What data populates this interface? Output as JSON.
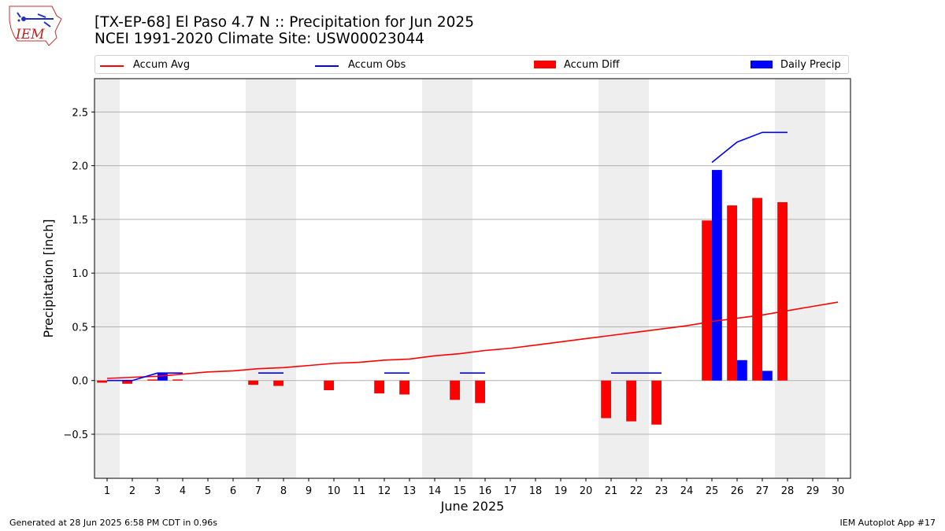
{
  "header": {
    "title_line1": "[TX-EP-68] El Paso 4.7 N :: Precipitation for Jun 2025",
    "title_line2": "NCEI 1991-2020 Climate Site: USW00023044",
    "logo_text": "IEM"
  },
  "legend": {
    "accum_avg": "Accum Avg",
    "accum_obs": "Accum Obs",
    "accum_diff": "Accum Diff",
    "daily_precip": "Daily Precip"
  },
  "footer": {
    "left": "Generated at 28 Jun 2025 6:58 PM CDT in 0.96s",
    "right": "IEM Autoplot App #17"
  },
  "colors": {
    "avg": "#ff0000",
    "obs": "#0000ff",
    "diff": "#ff0000",
    "daily": "#0000ff",
    "weekend_shade": "#eeeeee",
    "grid": "#b0b0b0"
  },
  "chart_data": {
    "type": "bar",
    "xlabel": "June 2025",
    "ylabel": "Precipitation [inch]",
    "xlim": [
      0.5,
      30.5
    ],
    "ylim": [
      -0.91,
      2.81
    ],
    "yticks": [
      -0.5,
      0.0,
      0.5,
      1.0,
      1.5,
      2.0,
      2.5
    ],
    "ytick_labels": [
      "−0.5",
      "0.0",
      "0.5",
      "1.0",
      "1.5",
      "2.0",
      "2.5"
    ],
    "days": [
      1,
      2,
      3,
      4,
      5,
      6,
      7,
      8,
      9,
      10,
      11,
      12,
      13,
      14,
      15,
      16,
      17,
      18,
      19,
      20,
      21,
      22,
      23,
      24,
      25,
      26,
      27,
      28,
      29,
      30
    ],
    "shaded_weekend_days": [
      1,
      7,
      8,
      14,
      15,
      21,
      22,
      28,
      29
    ],
    "grid": true,
    "legend_position": "top",
    "series": [
      {
        "name": "Accum Avg",
        "type": "line",
        "values": [
          0.02,
          0.03,
          0.04,
          0.06,
          0.08,
          0.09,
          0.11,
          0.12,
          0.14,
          0.16,
          0.17,
          0.19,
          0.2,
          0.23,
          0.25,
          0.28,
          0.3,
          0.33,
          0.36,
          0.39,
          0.42,
          0.45,
          0.48,
          0.51,
          0.55,
          0.58,
          0.61,
          0.65,
          0.69,
          0.73
        ]
      },
      {
        "name": "Accum Obs",
        "type": "line",
        "values": [
          0.0,
          0.0,
          0.07,
          0.07,
          null,
          null,
          0.07,
          0.07,
          null,
          null,
          null,
          0.07,
          0.07,
          null,
          0.07,
          0.07,
          null,
          null,
          null,
          null,
          0.07,
          0.07,
          0.07,
          null,
          2.03,
          2.22,
          2.31,
          2.31,
          null,
          null
        ]
      },
      {
        "name": "Accum Diff",
        "type": "bar",
        "values": [
          -0.02,
          -0.03,
          0.01,
          0.01,
          null,
          null,
          -0.04,
          -0.05,
          null,
          -0.09,
          null,
          -0.12,
          -0.13,
          null,
          -0.18,
          -0.21,
          null,
          null,
          null,
          null,
          -0.35,
          -0.38,
          -0.41,
          null,
          1.49,
          1.63,
          1.7,
          1.66,
          null,
          null
        ]
      },
      {
        "name": "Daily Precip",
        "type": "bar",
        "values": [
          0.0,
          0.0,
          0.07,
          0.0,
          null,
          null,
          0.0,
          0.0,
          null,
          null,
          null,
          0.0,
          0.0,
          null,
          0.0,
          0.0,
          null,
          null,
          null,
          null,
          0.0,
          0.0,
          0.0,
          null,
          1.96,
          0.19,
          0.09,
          0.0,
          null,
          null
        ]
      }
    ]
  }
}
